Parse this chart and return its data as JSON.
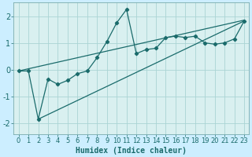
{
  "xlabel": "Humidex (Indice chaleur)",
  "background_color": "#cceeff",
  "plot_bg_color": "#d9f0f0",
  "line_color": "#1a6b6b",
  "grid_color": "#aad4d4",
  "spine_color": "#7aabab",
  "xlim": [
    -0.5,
    23.5
  ],
  "ylim": [
    -2.4,
    2.5
  ],
  "xticks": [
    0,
    1,
    2,
    3,
    4,
    5,
    6,
    7,
    8,
    9,
    10,
    11,
    12,
    13,
    14,
    15,
    16,
    17,
    18,
    19,
    20,
    21,
    22,
    23
  ],
  "yticks": [
    -2,
    -1,
    0,
    1,
    2
  ],
  "data_x": [
    0,
    1,
    2,
    3,
    4,
    5,
    6,
    7,
    8,
    9,
    10,
    11,
    12,
    13,
    14,
    15,
    16,
    17,
    18,
    19,
    20,
    21,
    22,
    23
  ],
  "data_y": [
    -0.05,
    -0.05,
    -1.85,
    -0.35,
    -0.55,
    -0.4,
    -0.15,
    -0.05,
    0.45,
    1.05,
    1.75,
    2.25,
    0.6,
    0.75,
    0.8,
    1.2,
    1.25,
    1.2,
    1.25,
    1.0,
    0.95,
    1.0,
    1.15,
    1.82
  ],
  "upper_line_x": [
    0,
    23
  ],
  "upper_line_y": [
    -0.05,
    1.85
  ],
  "lower_line_x": [
    2,
    23
  ],
  "lower_line_y": [
    -1.85,
    1.82
  ],
  "xlabel_fontsize": 7,
  "tick_fontsize": 6
}
